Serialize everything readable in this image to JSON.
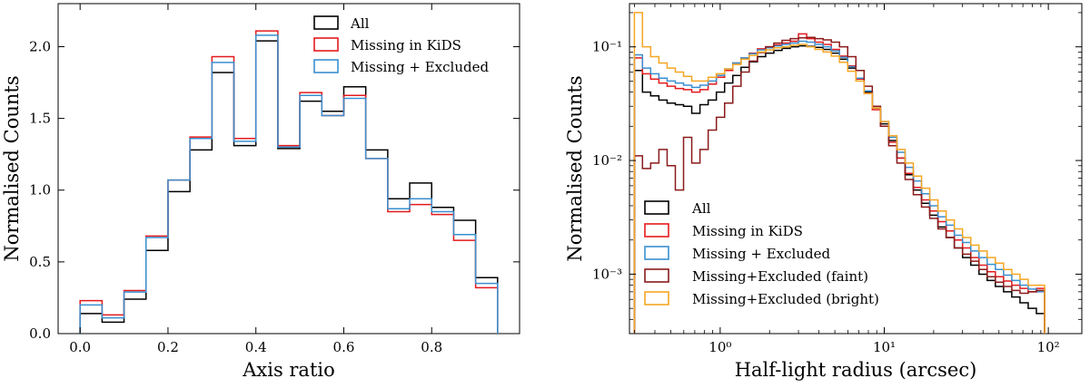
{
  "chart_data": [
    {
      "type": "histogram-step",
      "title": "",
      "xlabel": "Axis ratio",
      "ylabel": "Normalised Counts",
      "xlim": [
        -0.05,
        1.0
      ],
      "ylim": [
        0.0,
        2.3
      ],
      "xscale": "linear",
      "yscale": "linear",
      "x_ticks": [
        0.0,
        0.2,
        0.4,
        0.6,
        0.8
      ],
      "x_tick_labels": [
        "0.0",
        "0.2",
        "0.4",
        "0.6",
        "0.8"
      ],
      "y_ticks": [
        0.0,
        0.5,
        1.0,
        1.5,
        2.0
      ],
      "y_tick_labels": [
        "0.0",
        "0.5",
        "1.0",
        "1.5",
        "2.0"
      ],
      "legend_position": "top-right",
      "bin_edges": [
        0.0,
        0.05,
        0.1,
        0.15,
        0.2,
        0.25,
        0.3,
        0.35,
        0.4,
        0.45,
        0.5,
        0.55,
        0.6,
        0.65,
        0.7,
        0.75,
        0.8,
        0.85,
        0.9,
        0.95
      ],
      "series": [
        {
          "name": "All",
          "color": "#000000",
          "values": [
            0.14,
            0.08,
            0.24,
            0.58,
            0.99,
            1.28,
            1.82,
            1.31,
            2.04,
            1.29,
            1.62,
            1.55,
            1.72,
            1.28,
            0.94,
            1.05,
            0.88,
            0.79,
            0.39
          ]
        },
        {
          "name": "Missing in KiDS",
          "color": "#e41a1c",
          "values": [
            0.23,
            0.13,
            0.3,
            0.68,
            1.07,
            1.37,
            1.93,
            1.36,
            2.11,
            1.31,
            1.68,
            1.52,
            1.66,
            1.22,
            0.85,
            0.9,
            0.83,
            0.65,
            0.32
          ]
        },
        {
          "name": "Missing + Excluded",
          "color": "#3a8fd0",
          "values": [
            0.2,
            0.11,
            0.29,
            0.67,
            1.07,
            1.36,
            1.89,
            1.34,
            2.08,
            1.3,
            1.66,
            1.52,
            1.64,
            1.22,
            0.87,
            0.94,
            0.85,
            0.69,
            0.35
          ]
        }
      ]
    },
    {
      "type": "histogram-step",
      "title": "",
      "xlabel": "Half-light radius (arcsec)",
      "ylabel": "Normalised Counts",
      "xscale": "log",
      "yscale": "log",
      "xlim": [
        0.28,
        160
      ],
      "ylim": [
        0.0003,
        0.24
      ],
      "x_ticks": [
        1,
        10,
        100
      ],
      "x_tick_labels": [
        "10⁰",
        "10¹",
        "10²"
      ],
      "y_ticks": [
        0.001,
        0.01,
        0.1
      ],
      "y_tick_labels": [
        "10⁻³",
        "10⁻²",
        "10⁻¹"
      ],
      "legend_position": "bottom-left",
      "bin_edges": [
        0.3,
        0.336,
        0.377,
        0.423,
        0.475,
        0.533,
        0.598,
        0.671,
        0.753,
        0.845,
        0.948,
        1.064,
        1.194,
        1.34,
        1.503,
        1.687,
        1.893,
        2.124,
        2.383,
        2.674,
        3.0,
        3.366,
        3.777,
        4.238,
        4.755,
        5.335,
        5.986,
        6.716,
        7.536,
        8.455,
        9.487,
        10.645,
        11.944,
        13.401,
        15.037,
        16.872,
        18.931,
        21.241,
        23.833,
        26.742,
        30.005,
        33.667,
        37.776,
        42.386,
        47.559,
        53.363,
        59.875,
        67.182,
        75.381,
        84.581,
        94.903
      ],
      "series": [
        {
          "name": "All",
          "color": "#000000",
          "values": [
            0.062,
            0.04,
            0.037,
            0.034,
            0.032,
            0.031,
            0.03,
            0.026,
            0.031,
            0.034,
            0.04,
            0.048,
            0.056,
            0.066,
            0.074,
            0.082,
            0.088,
            0.093,
            0.097,
            0.1,
            0.102,
            0.101,
            0.099,
            0.095,
            0.088,
            0.078,
            0.065,
            0.052,
            0.04,
            0.029,
            0.021,
            0.015,
            0.0105,
            0.0075,
            0.0055,
            0.0042,
            0.0033,
            0.0026,
            0.0021,
            0.0017,
            0.0014,
            0.0012,
            0.001,
            0.00088,
            0.00078,
            0.0007,
            0.00063,
            0.00056,
            0.0005,
            0.00045
          ]
        },
        {
          "name": "Missing in KiDS",
          "color": "#e41a1c",
          "values": [
            0.08,
            0.058,
            0.052,
            0.048,
            0.045,
            0.043,
            0.042,
            0.04,
            0.042,
            0.047,
            0.054,
            0.062,
            0.072,
            0.08,
            0.088,
            0.096,
            0.1,
            0.104,
            0.108,
            0.112,
            0.13,
            0.118,
            0.11,
            0.105,
            0.095,
            0.083,
            0.068,
            0.052,
            0.039,
            0.028,
            0.02,
            0.0145,
            0.0105,
            0.0077,
            0.0058,
            0.0045,
            0.0036,
            0.0029,
            0.0024,
            0.002,
            0.0017,
            0.0014,
            0.0012,
            0.00105,
            0.00095,
            0.00087,
            0.0008,
            0.00075,
            0.0007,
            0.00075
          ]
        },
        {
          "name": "Missing + Excluded",
          "color": "#3a8fd0",
          "values": [
            0.085,
            0.065,
            0.058,
            0.053,
            0.05,
            0.048,
            0.046,
            0.044,
            0.046,
            0.05,
            0.056,
            0.064,
            0.072,
            0.08,
            0.087,
            0.094,
            0.098,
            0.102,
            0.105,
            0.108,
            0.112,
            0.11,
            0.105,
            0.1,
            0.092,
            0.081,
            0.067,
            0.053,
            0.041,
            0.03,
            0.022,
            0.016,
            0.0118,
            0.0087,
            0.0066,
            0.0051,
            0.004,
            0.0032,
            0.0027,
            0.0022,
            0.0019,
            0.0016,
            0.0014,
            0.00122,
            0.0011,
            0.00098,
            0.00088,
            0.0008,
            0.00074,
            0.0007
          ]
        },
        {
          "name": "Missing+Excluded (faint)",
          "color": "#8b1a1a",
          "values": [
            0.011,
            0.0085,
            0.0095,
            0.0125,
            0.009,
            0.0055,
            0.016,
            0.0095,
            0.0125,
            0.0185,
            0.024,
            0.032,
            0.045,
            0.06,
            0.075,
            0.089,
            0.1,
            0.108,
            0.114,
            0.118,
            0.12,
            0.121,
            0.118,
            0.115,
            0.11,
            0.1,
            0.082,
            0.062,
            0.045,
            0.03,
            0.02,
            0.0135,
            0.0095,
            0.0068,
            0.005,
            0.0039,
            0.0031,
            0.0025,
            0.0021,
            0.0017,
            0.0015,
            0.0013,
            0.0011,
            0.00095,
            0.00085,
            0.00078,
            0.00072,
            0.00068,
            0.0007,
            0.00072
          ]
        },
        {
          "name": "Missing+Excluded (bright)",
          "color": "#f5a623",
          "values": [
            0.2,
            0.1,
            0.082,
            0.072,
            0.065,
            0.06,
            0.055,
            0.05,
            0.05,
            0.054,
            0.058,
            0.064,
            0.07,
            0.078,
            0.084,
            0.09,
            0.094,
            0.098,
            0.1,
            0.103,
            0.105,
            0.1,
            0.095,
            0.09,
            0.083,
            0.073,
            0.061,
            0.05,
            0.039,
            0.029,
            0.022,
            0.0165,
            0.0125,
            0.0095,
            0.0073,
            0.0057,
            0.0045,
            0.0036,
            0.003,
            0.0025,
            0.0021,
            0.0018,
            0.0016,
            0.0014,
            0.00125,
            0.0011,
            0.001,
            0.0009,
            0.0008,
            0.0008
          ]
        }
      ]
    }
  ]
}
